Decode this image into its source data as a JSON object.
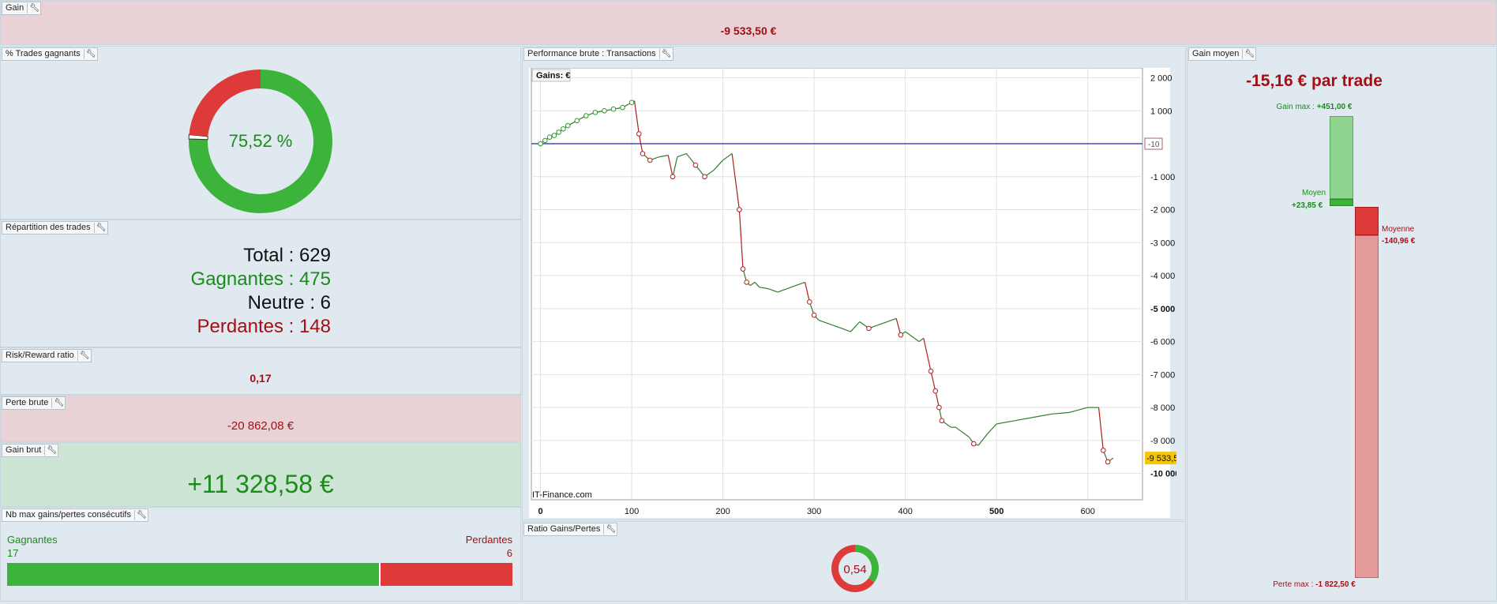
{
  "gain": {
    "title": "Gain",
    "value": "-9 533,50 €"
  },
  "trades_gagnants": {
    "title": "% Trades gagnants",
    "value": "75,52 %",
    "win_fraction": 0.7552,
    "neutral_fraction": 0.0095,
    "loss_fraction": 0.2353
  },
  "repartition": {
    "title": "Répartition des trades",
    "total": "Total : 629",
    "gagnantes": "Gagnantes : 475",
    "neutre": "Neutre : 6",
    "perdantes": "Perdantes : 148"
  },
  "risk_reward": {
    "title": "Risk/Reward ratio",
    "value": "0,17"
  },
  "perte_brute": {
    "title": "Perte brute",
    "value": "-20 862,08 €"
  },
  "gain_brut": {
    "title": "Gain brut",
    "value": "+11 328,58 €"
  },
  "consecutifs": {
    "title": "Nb max gains/pertes consécutifs",
    "gagnantes_label": "Gagnantes",
    "gagnantes_value": "17",
    "perdantes_label": "Perdantes",
    "perdantes_value": "6",
    "win_count": 17,
    "loss_count": 6
  },
  "performance": {
    "title": "Performance brute : Transactions",
    "legend": "Gains: €",
    "watermark": "IT-Finance.com",
    "zero_marker": "-10",
    "last_value_label": "-9 533,5"
  },
  "ratio": {
    "title": "Ratio Gains/Pertes",
    "value": "0,54",
    "green_fraction": 0.35
  },
  "gain_moyen": {
    "title": "Gain moyen",
    "headline": "-15,16 € par trade",
    "gain_max_label": "Gain max :",
    "gain_max_value": "+451,00 €",
    "moyen_label": "Moyen",
    "moyen_value": "+23,85 €",
    "moyenne_label": "Moyenne",
    "moyenne_value": "-140,96 €",
    "perte_max_label": "Perte max :",
    "perte_max_value": "-1 822,50 €"
  },
  "colors": {
    "green": "#3cb43c",
    "red": "#de3a3a",
    "dark_red": "#a50f14",
    "dark_green": "#1a8c1a",
    "line_green": "#2f7d2f",
    "line_red": "#b01e1e"
  },
  "chart_data": {
    "type": "line",
    "title": "",
    "xlabel": "",
    "ylabel": "Gains: €",
    "xlim": [
      -10,
      660
    ],
    "ylim": [
      -10800,
      2300
    ],
    "x_ticks": [
      "0",
      "100",
      "200",
      "300",
      "400",
      "500",
      "600"
    ],
    "y_ticks": [
      "2 000",
      "1 000",
      "-1 000",
      "-2 000",
      "-3 000",
      "-4 000",
      "-5 000",
      "-6 000",
      "-7 000",
      "-8 000",
      "-9 000",
      "-10 000"
    ],
    "grid": true,
    "series": [
      {
        "values_x": [
          0,
          5,
          10,
          15,
          20,
          25,
          30,
          40,
          50,
          60,
          70,
          80,
          90,
          100,
          103,
          108,
          112,
          120,
          130,
          140,
          145,
          150,
          160,
          170,
          180,
          185,
          190,
          200,
          210,
          218,
          222,
          226,
          230,
          235,
          240,
          250,
          260,
          270,
          280,
          290,
          295,
          300,
          305,
          310,
          320,
          330,
          340,
          350,
          360,
          370,
          380,
          390,
          395,
          400,
          405,
          410,
          415,
          420,
          428,
          433,
          437,
          440,
          445,
          450,
          455,
          460,
          465,
          470,
          475,
          480,
          490,
          500,
          520,
          540,
          560,
          580,
          600,
          612,
          617,
          622,
          628
        ],
        "values_y": [
          0,
          100,
          200,
          250,
          350,
          450,
          550,
          700,
          850,
          950,
          1000,
          1050,
          1100,
          1250,
          1300,
          300,
          -300,
          -500,
          -400,
          -350,
          -1000,
          -400,
          -300,
          -650,
          -1000,
          -900,
          -800,
          -500,
          -300,
          -2000,
          -3800,
          -4200,
          -4300,
          -4200,
          -4350,
          -4400,
          -4500,
          -4400,
          -4300,
          -4200,
          -4800,
          -5200,
          -5350,
          -5400,
          -5500,
          -5600,
          -5700,
          -5400,
          -5600,
          -5500,
          -5400,
          -5300,
          -5800,
          -5700,
          -5800,
          -5900,
          -6000,
          -5900,
          -6900,
          -7500,
          -8000,
          -8400,
          -8500,
          -8600,
          -8600,
          -8700,
          -8800,
          -8900,
          -9100,
          -9150,
          -8800,
          -8500,
          -8400,
          -8300,
          -8200,
          -8150,
          -8000,
          -8000,
          -9300,
          -9650,
          -9533.5
        ],
        "color": "#2f7d2f"
      }
    ]
  }
}
